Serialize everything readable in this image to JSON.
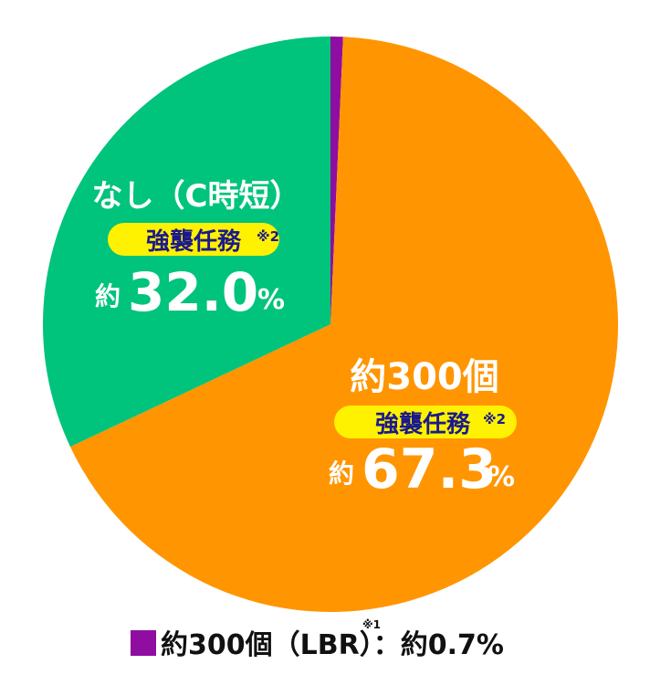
{
  "chart_data": {
    "type": "pie",
    "slices": [
      {
        "label": "約300個（LBR）",
        "value": 0.7,
        "pct_prefix": "約",
        "pct_number": "0.7",
        "pct_unit": "%",
        "note": "※1",
        "color": "#8f0da0"
      },
      {
        "label": "約300個",
        "value": 67.3,
        "pct_prefix": "約",
        "pct_number": "67.3",
        "pct_unit": "%",
        "tag": "強襲任務",
        "tag_note": "※2",
        "color": "#ff9500"
      },
      {
        "label": "なし（C時短）",
        "value": 32.0,
        "pct_prefix": "約",
        "pct_number": "32.0",
        "pct_unit": "%",
        "tag": "強襲任務",
        "tag_note": "※2",
        "color": "#00c37c"
      }
    ],
    "tag_pill_color": "#fff200",
    "legend": {
      "swatch_color": "#8f0da0",
      "label": "約300個（LBR）",
      "note": "※1",
      "separator": "：",
      "value_text": "約0.7%"
    }
  }
}
